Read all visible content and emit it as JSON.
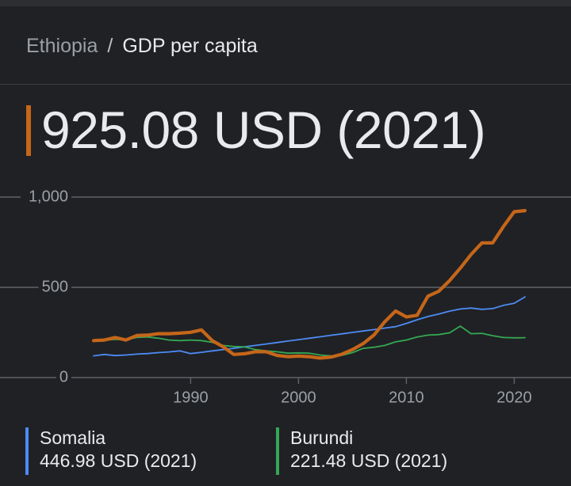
{
  "breadcrumb": {
    "parent": "Ethiopia",
    "separator": "/",
    "current": "GDP per capita"
  },
  "headline": {
    "value": "925.08 USD (2021)",
    "accent_color": "#c5661a"
  },
  "chart_data": {
    "type": "line",
    "x_ticks": [
      "1990",
      "2000",
      "2010",
      "2020"
    ],
    "y_ticks": [
      "0",
      "500",
      "1,000"
    ],
    "xlim": [
      1981,
      2021
    ],
    "ylim": [
      0,
      1000
    ],
    "grid": true,
    "series": [
      {
        "name": "Ethiopia",
        "color": "#c5661a",
        "x": [
          1981,
          1982,
          1983,
          1984,
          1985,
          1986,
          1987,
          1988,
          1989,
          1990,
          1991,
          1992,
          1993,
          1994,
          1995,
          1996,
          1997,
          1998,
          1999,
          2000,
          2001,
          2002,
          2003,
          2004,
          2005,
          2006,
          2007,
          2008,
          2009,
          2010,
          2011,
          2012,
          2013,
          2014,
          2015,
          2016,
          2017,
          2018,
          2019,
          2020,
          2021
        ],
        "values": [
          205,
          208,
          222,
          208,
          233,
          235,
          243,
          243,
          246,
          251,
          264,
          205,
          171,
          128,
          132,
          143,
          143,
          123,
          116,
          119,
          116,
          108,
          113,
          129,
          155,
          188,
          236,
          309,
          369,
          336,
          345,
          451,
          478,
          537,
          606,
          682,
          746,
          746,
          837,
          919,
          925
        ]
      },
      {
        "name": "Somalia",
        "color": "#4c8bf5",
        "x": [
          1981,
          1982,
          1983,
          1984,
          1985,
          1986,
          1987,
          1988,
          1989,
          1990,
          1991,
          1992,
          1993,
          1994,
          1995,
          1996,
          1997,
          1998,
          1999,
          2000,
          2001,
          2002,
          2003,
          2004,
          2005,
          2006,
          2007,
          2008,
          2009,
          2010,
          2011,
          2012,
          2013,
          2014,
          2015,
          2016,
          2017,
          2018,
          2019,
          2020,
          2021
        ],
        "values": [
          120,
          128,
          122,
          125,
          130,
          133,
          138,
          142,
          148,
          133,
          140,
          148,
          155,
          162,
          170,
          178,
          186,
          194,
          202,
          210,
          218,
          226,
          234,
          242,
          250,
          258,
          266,
          274,
          282,
          300,
          320,
          338,
          352,
          368,
          380,
          385,
          378,
          382,
          400,
          412,
          447
        ]
      },
      {
        "name": "Burundi",
        "color": "#34a853",
        "x": [
          1981,
          1982,
          1983,
          1984,
          1985,
          1986,
          1987,
          1988,
          1989,
          1990,
          1991,
          1992,
          1993,
          1994,
          1995,
          1996,
          1997,
          1998,
          1999,
          2000,
          2001,
          2002,
          2003,
          2004,
          2005,
          2006,
          2007,
          2008,
          2009,
          2010,
          2011,
          2012,
          2013,
          2014,
          2015,
          2016,
          2017,
          2018,
          2019,
          2020,
          2021
        ],
        "values": [
          205,
          206,
          212,
          210,
          222,
          225,
          218,
          208,
          205,
          208,
          205,
          195,
          178,
          172,
          170,
          155,
          148,
          143,
          135,
          137,
          135,
          125,
          120,
          123,
          138,
          162,
          168,
          178,
          198,
          208,
          225,
          235,
          238,
          248,
          285,
          243,
          245,
          232,
          222,
          220,
          221
        ]
      }
    ]
  },
  "legend": [
    {
      "name": "Somalia",
      "value": "446.98 USD (2021)",
      "color": "#4c8bf5"
    },
    {
      "name": "Burundi",
      "value": "221.48 USD (2021)",
      "color": "#34a853"
    }
  ]
}
